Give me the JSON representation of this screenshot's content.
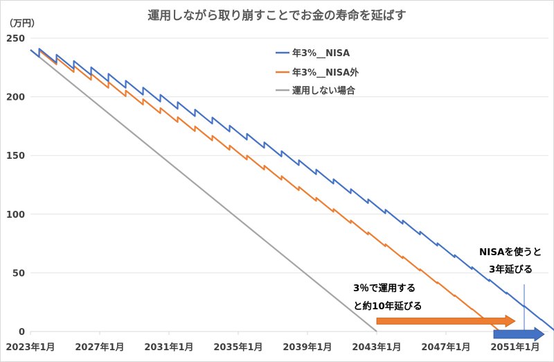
{
  "chart_data": {
    "type": "line",
    "title": "運用しながら取り崩すことでお金の寿命を延ばす",
    "ylabel": "（万円）",
    "xlabel": "",
    "ylim": [
      0,
      250
    ],
    "yticks": [
      0,
      50,
      100,
      150,
      200,
      250
    ],
    "ytick_labels": [
      "0",
      "50",
      "100",
      "150",
      "200",
      "250"
    ],
    "xlim": [
      2023.0,
      2053.8
    ],
    "xticks": [
      2023,
      2027,
      2031,
      2035,
      2039,
      2043,
      2047,
      2051
    ],
    "xtick_labels": [
      "2023年1月",
      "2027年1月",
      "2031年1月",
      "2035年1月",
      "2039年1月",
      "2043年1月",
      "2047年1月",
      "2051年1月"
    ],
    "grid": true,
    "legend_position": "top-center",
    "monthly_withdrawal": 1,
    "annual_credit_month": 7,
    "series": [
      {
        "name": "年3%__NISA",
        "color": "#4472c4",
        "jan_years": [
          2023,
          2024,
          2025,
          2026,
          2027,
          2028,
          2029,
          2030,
          2031,
          2032,
          2033,
          2034,
          2035,
          2036,
          2037,
          2038,
          2039,
          2040,
          2041,
          2042,
          2043,
          2044,
          2045,
          2046,
          2047,
          2048,
          2049,
          2050,
          2051,
          2052,
          2053
        ],
        "jan_values": [
          240,
          235.0,
          229.9,
          224.6,
          219.2,
          213.6,
          207.8,
          201.9,
          195.8,
          189.5,
          183.1,
          176.4,
          169.5,
          162.5,
          155.2,
          147.7,
          140.0,
          132.0,
          123.8,
          115.4,
          106.7,
          97.8,
          88.6,
          79.1,
          69.3,
          59.2,
          48.9,
          38.2,
          27.2,
          15.9,
          4.2
        ],
        "annual_rate": 0.03
      },
      {
        "name": "年3%__NISA外",
        "color": "#ed7d31",
        "jan_years": [
          2023,
          2024,
          2025,
          2026,
          2027,
          2028,
          2029,
          2030,
          2031,
          2032,
          2033,
          2034,
          2035,
          2036,
          2037,
          2038,
          2039,
          2040,
          2041,
          2042,
          2043,
          2044,
          2045,
          2046,
          2047,
          2048,
          2049,
          2050
        ],
        "jan_values": [
          240,
          233.6,
          227.1,
          220.4,
          213.6,
          206.5,
          199.4,
          192.0,
          184.5,
          176.7,
          168.8,
          160.8,
          152.5,
          144.0,
          135.3,
          126.4,
          117.3,
          108.0,
          98.4,
          88.6,
          78.6,
          68.4,
          57.9,
          47.1,
          36.1,
          24.9,
          13.3,
          1.5
        ],
        "annual_rate": 0.024
      },
      {
        "name": "運用しない場合",
        "color": "#a5a5a5",
        "jan_years": [
          2023,
          2043
        ],
        "jan_values": [
          240,
          0
        ],
        "annual_rate": 0
      }
    ],
    "annotations": [
      {
        "text_lines": [
          "3％で運用する",
          "と約10年延びる"
        ],
        "arrow_from": 2043,
        "arrow_to": 2051,
        "arrow_color": "#ed7d31"
      },
      {
        "text_lines": [
          "NISAを使うと",
          "3年延びる"
        ],
        "arrow_from": 2050,
        "arrow_to": 2053,
        "arrow_color": "#4472c4"
      }
    ]
  }
}
